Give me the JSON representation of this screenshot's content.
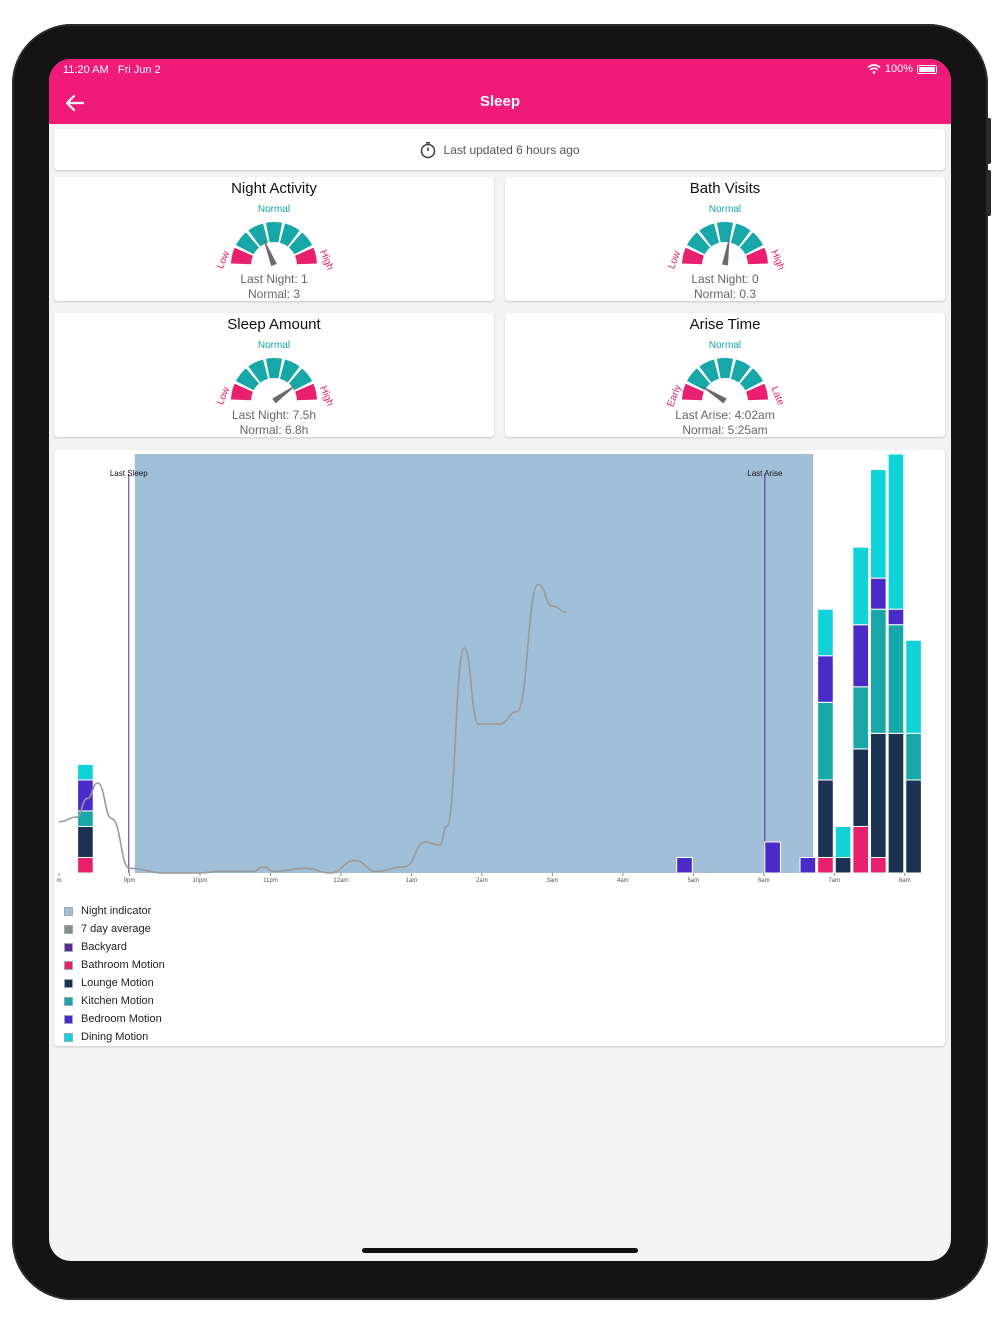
{
  "status": {
    "time": "11:20 AM",
    "date": "Fri Jun 2",
    "battery": "100%"
  },
  "nav": {
    "title": "Sleep",
    "back_icon": "arrow-left-icon"
  },
  "updated": {
    "text": "Last updated 6 hours ago",
    "icon": "timer-icon"
  },
  "gauges": [
    {
      "title": "Night Activity",
      "normal": "Normal",
      "low": "Low",
      "high": "High",
      "line1": "Last Night: 1",
      "line2": "Normal: 3",
      "needle_fraction": 0.38
    },
    {
      "title": "Bath Visits",
      "normal": "Normal",
      "low": "Low",
      "high": "High",
      "line1": "Last Night: 0",
      "line2": "Normal: 0.3",
      "needle_fraction": 0.55
    },
    {
      "title": "Sleep Amount",
      "normal": "Normal",
      "low": "Low",
      "high": "High",
      "line1": "Last Night: 7.5h",
      "line2": "Normal: 6.8h",
      "needle_fraction": 0.8
    },
    {
      "title": "Arise Time",
      "normal": "Normal",
      "low": "Early",
      "high": "Late",
      "line1": "Last Arise: 4:02am",
      "line2": "Normal: 5:25am",
      "needle_fraction": 0.18
    }
  ],
  "colors": {
    "pink": "#e8206e",
    "teal": "#18a7a8",
    "navy": "#1b3252",
    "purple": "#4a2bc8",
    "cyan": "#0fd3d8",
    "night": "#a2bfd8",
    "avg": "#9a9a9a",
    "brand": "#f01a78"
  },
  "chart_data": {
    "type": "bar",
    "x_ticks": [
      "m",
      "9pm",
      "10pm",
      "11pm",
      "12am",
      "1am",
      "2am",
      "3am",
      "4am",
      "5am",
      "6am",
      "7am",
      "8am"
    ],
    "annotations": [
      {
        "label": "Last Sleep",
        "x": 9.98
      },
      {
        "label": "Last Arise",
        "x": 28.03
      }
    ],
    "night_indicator": {
      "start": 10.15,
      "end": 29.4
    },
    "ylim": [
      0,
      27
    ],
    "series": [
      {
        "name": "Bathroom Motion",
        "color": "#e8206e"
      },
      {
        "name": "Lounge Motion",
        "color": "#1b3252"
      },
      {
        "name": "Kitchen Motion",
        "color": "#18a7a8"
      },
      {
        "name": "Bedroom Motion",
        "color": "#4a2bc8"
      },
      {
        "name": "Dining Motion",
        "color": "#0fd3d8"
      }
    ],
    "bars": [
      {
        "x": 8.75,
        "values": [
          1,
          2,
          1,
          2,
          1
        ]
      },
      {
        "x": 25.75,
        "values": [
          0,
          0,
          0,
          1,
          0
        ]
      },
      {
        "x": 28.25,
        "values": [
          0,
          0,
          0,
          2,
          0
        ]
      },
      {
        "x": 29.25,
        "values": [
          0,
          0,
          0,
          1,
          0
        ]
      },
      {
        "x": 29.75,
        "values": [
          1,
          5,
          5,
          3,
          3
        ]
      },
      {
        "x": 30.25,
        "values": [
          0,
          1,
          0,
          0,
          2
        ]
      },
      {
        "x": 30.75,
        "values": [
          3,
          5,
          4,
          4,
          5
        ]
      },
      {
        "x": 31.25,
        "values": [
          1,
          8,
          8,
          2,
          7
        ]
      },
      {
        "x": 31.75,
        "values": [
          0,
          9,
          7,
          1,
          10
        ]
      },
      {
        "x": 32.25,
        "values": [
          0,
          6,
          3,
          0,
          6
        ]
      }
    ],
    "average": [
      [
        8.0,
        3.3
      ],
      [
        8.5,
        3.6
      ],
      [
        8.8,
        4.8
      ],
      [
        9.1,
        5.8
      ],
      [
        9.5,
        3.5
      ],
      [
        10.0,
        0.3
      ],
      [
        11.0,
        0.0
      ],
      [
        12.0,
        0.0
      ],
      [
        12.5,
        0.1
      ],
      [
        13.5,
        0.1
      ],
      [
        13.8,
        0.4
      ],
      [
        14.1,
        0.1
      ],
      [
        15.0,
        0.3
      ],
      [
        15.7,
        0.0
      ],
      [
        16.4,
        0.8
      ],
      [
        17.0,
        0.1
      ],
      [
        17.8,
        0.4
      ],
      [
        18.4,
        2.0
      ],
      [
        18.8,
        1.8
      ],
      [
        19.0,
        3.0
      ],
      [
        19.5,
        14.5
      ],
      [
        19.9,
        9.6
      ],
      [
        20.5,
        9.6
      ],
      [
        21.0,
        10.4
      ],
      [
        21.6,
        18.6
      ],
      [
        22.0,
        17.2
      ],
      [
        22.4,
        16.8
      ]
    ],
    "legend": [
      {
        "label": "Night indicator",
        "color": "#a2bfd8"
      },
      {
        "label": "7 day average",
        "color": "#8a8a8a"
      },
      {
        "label": "Backyard",
        "color": "#5b2a8c"
      },
      {
        "label": "Bathroom Motion",
        "color": "#e8206e"
      },
      {
        "label": "Lounge Motion",
        "color": "#1b3252"
      },
      {
        "label": "Kitchen Motion",
        "color": "#18a7a8"
      },
      {
        "label": "Bedroom Motion",
        "color": "#4a2bc8"
      },
      {
        "label": "Dining Motion",
        "color": "#0fd3d8"
      }
    ]
  }
}
